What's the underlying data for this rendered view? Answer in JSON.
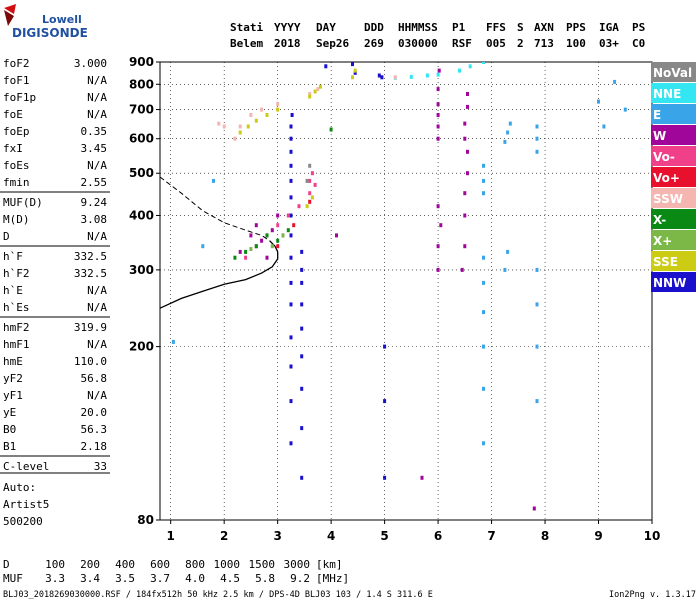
{
  "logo": {
    "line1": "Lowell",
    "line2": "DIGISONDE"
  },
  "header": {
    "labels": [
      "Stati",
      "YYYY",
      "DAY",
      "DDD",
      "HHMMSS",
      "P1",
      "FFS",
      "S",
      "AXN",
      "PPS",
      "IGA",
      "PS"
    ],
    "values": [
      "Belem",
      "2018",
      "Sep26",
      "269",
      "030000",
      "RSF",
      "005",
      "2",
      "713",
      "100",
      "03+",
      "C0"
    ]
  },
  "params": [
    {
      "name": "foF2",
      "value": "3.000"
    },
    {
      "name": "foF1",
      "value": "N/A"
    },
    {
      "name": "foF1p",
      "value": "N/A"
    },
    {
      "name": "foE",
      "value": "N/A"
    },
    {
      "name": "foEp",
      "value": "0.35"
    },
    {
      "name": "fxI",
      "value": "3.45"
    },
    {
      "name": "foEs",
      "value": "N/A"
    },
    {
      "name": "fmin",
      "value": "2.55"
    },
    {
      "name": "MUF(D)",
      "value": "9.24"
    },
    {
      "name": "M(D)",
      "value": "3.08"
    },
    {
      "name": "D",
      "value": "N/A"
    },
    {
      "name": "h`F",
      "value": "332.5"
    },
    {
      "name": "h`F2",
      "value": "332.5"
    },
    {
      "name": "h`E",
      "value": "N/A"
    },
    {
      "name": "h`Es",
      "value": "N/A"
    },
    {
      "name": "hmF2",
      "value": "319.9"
    },
    {
      "name": "hmF1",
      "value": "N/A"
    },
    {
      "name": "hmE",
      "value": "110.0"
    },
    {
      "name": "yF2",
      "value": "56.8"
    },
    {
      "name": "yF1",
      "value": "N/A"
    },
    {
      "name": "yE",
      "value": "20.0"
    },
    {
      "name": "B0",
      "value": "56.3"
    },
    {
      "name": "B1",
      "value": "2.18"
    },
    {
      "name": "C-level",
      "value": "33"
    }
  ],
  "auto": {
    "label": "Auto:",
    "name": "Artist5",
    "code": "500200"
  },
  "legend": [
    {
      "label": "NoVal",
      "color": "#888888"
    },
    {
      "label": "NNE",
      "color": "#33e6f2"
    },
    {
      "label": "E",
      "color": "#3aa4e8"
    },
    {
      "label": "W",
      "color": "#a0069a"
    },
    {
      "label": "Vo-",
      "color": "#f0408a"
    },
    {
      "label": "Vo+",
      "color": "#e8102c"
    },
    {
      "label": "SSW",
      "color": "#f5b5b0"
    },
    {
      "label": "X-",
      "color": "#0a8a14"
    },
    {
      "label": "X+",
      "color": "#7cb848"
    },
    {
      "label": "SSE",
      "color": "#cccc14"
    },
    {
      "label": "NNW",
      "color": "#1a10cc"
    }
  ],
  "mufTable": {
    "dLabel": "D",
    "dValues": [
      "100",
      "200",
      "400",
      "600",
      "800",
      "1000",
      "1500",
      "3000"
    ],
    "dUnit": "[km]",
    "mLabel": "MUF",
    "mValues": [
      "3.3",
      "3.4",
      "3.5",
      "3.7",
      "4.0",
      "4.5",
      "5.8",
      "9.2"
    ],
    "mUnit": "[MHz]"
  },
  "footer": {
    "left": "BLJ03_2018269030000.RSF / 184fx512h 50 kHz 2.5 km / DPS-4D BLJ03 103 / 1.4 S 311.6 E",
    "right": "Ion2Png v. 1.3.17"
  },
  "chart_data": {
    "type": "scatter",
    "xlim": [
      0.8,
      10
    ],
    "ylim": [
      80,
      900
    ],
    "yscale": "log",
    "xticks": [
      1,
      2,
      3,
      4,
      5,
      6,
      7,
      8,
      9,
      10
    ],
    "yticks": [
      80,
      200,
      300,
      400,
      500,
      600,
      700,
      800,
      900
    ],
    "grid": true,
    "legend_position": "right",
    "series": [
      {
        "name": "NNW",
        "color": "#1a10cc",
        "points": [
          [
            3.25,
            120
          ],
          [
            3.25,
            150
          ],
          [
            3.25,
            180
          ],
          [
            3.25,
            210
          ],
          [
            3.25,
            250
          ],
          [
            3.25,
            280
          ],
          [
            3.25,
            320
          ],
          [
            3.25,
            360
          ],
          [
            3.25,
            400
          ],
          [
            3.25,
            440
          ],
          [
            3.25,
            480
          ],
          [
            3.25,
            520
          ],
          [
            3.25,
            560
          ],
          [
            3.25,
            600
          ],
          [
            3.25,
            640
          ],
          [
            3.27,
            680
          ],
          [
            3.45,
            100
          ],
          [
            3.45,
            130
          ],
          [
            3.45,
            160
          ],
          [
            3.45,
            190
          ],
          [
            3.45,
            220
          ],
          [
            3.45,
            250
          ],
          [
            3.45,
            280
          ],
          [
            3.45,
            300
          ],
          [
            3.45,
            330
          ],
          [
            5.0,
            100
          ],
          [
            5.0,
            150
          ],
          [
            5.0,
            200
          ],
          [
            4.9,
            838
          ],
          [
            4.95,
            830
          ],
          [
            3.9,
            880
          ],
          [
            4.45,
            850
          ],
          [
            4.4,
            890
          ]
        ]
      },
      {
        "name": "W",
        "color": "#a0069a",
        "points": [
          [
            6.0,
            600
          ],
          [
            6.0,
            640
          ],
          [
            6.0,
            680
          ],
          [
            6.0,
            720
          ],
          [
            6.0,
            780
          ],
          [
            6.02,
            860
          ],
          [
            6.0,
            300
          ],
          [
            6.0,
            340
          ],
          [
            6.05,
            380
          ],
          [
            6.0,
            420
          ],
          [
            6.45,
            300
          ],
          [
            6.5,
            340
          ],
          [
            6.5,
            400
          ],
          [
            6.5,
            450
          ],
          [
            6.55,
            500
          ],
          [
            6.55,
            560
          ],
          [
            6.5,
            600
          ],
          [
            6.5,
            650
          ],
          [
            6.55,
            710
          ],
          [
            6.55,
            760
          ],
          [
            2.5,
            360
          ],
          [
            2.7,
            350
          ],
          [
            2.9,
            370
          ],
          [
            3.1,
            360
          ],
          [
            2.3,
            330
          ],
          [
            2.6,
            380
          ],
          [
            3.0,
            400
          ],
          [
            2.8,
            320
          ],
          [
            7.8,
            85
          ],
          [
            4.1,
            360
          ],
          [
            5.7,
            100
          ]
        ]
      },
      {
        "name": "E",
        "color": "#3aa4e8",
        "points": [
          [
            6.85,
            120
          ],
          [
            6.85,
            160
          ],
          [
            6.85,
            200
          ],
          [
            6.85,
            240
          ],
          [
            6.85,
            280
          ],
          [
            6.85,
            320
          ],
          [
            6.85,
            450
          ],
          [
            6.85,
            480
          ],
          [
            6.85,
            520
          ],
          [
            7.25,
            300
          ],
          [
            7.3,
            330
          ],
          [
            7.25,
            590
          ],
          [
            7.3,
            620
          ],
          [
            7.35,
            650
          ],
          [
            7.85,
            150
          ],
          [
            7.85,
            200
          ],
          [
            7.85,
            250
          ],
          [
            7.85,
            300
          ],
          [
            7.85,
            560
          ],
          [
            7.85,
            600
          ],
          [
            7.85,
            640
          ],
          [
            9.0,
            730
          ],
          [
            9.1,
            640
          ],
          [
            9.3,
            810
          ],
          [
            9.5,
            700
          ],
          [
            1.05,
            205
          ],
          [
            1.6,
            340
          ],
          [
            1.8,
            480
          ]
        ]
      },
      {
        "name": "NNE",
        "color": "#33e6f2",
        "points": [
          [
            5.2,
            828
          ],
          [
            5.5,
            832
          ],
          [
            5.8,
            838
          ],
          [
            6.0,
            842
          ],
          [
            6.4,
            860
          ],
          [
            6.6,
            880
          ],
          [
            6.85,
            900
          ]
        ]
      },
      {
        "name": "Vo-",
        "color": "#f0408a",
        "points": [
          [
            2.8,
            360
          ],
          [
            3.0,
            380
          ],
          [
            3.2,
            400
          ],
          [
            3.4,
            420
          ],
          [
            3.6,
            450
          ],
          [
            3.65,
            500
          ],
          [
            3.6,
            480
          ],
          [
            3.7,
            470
          ],
          [
            2.6,
            340
          ],
          [
            2.4,
            320
          ]
        ]
      },
      {
        "name": "Vo+",
        "color": "#e8102c",
        "points": [
          [
            3.0,
            340
          ],
          [
            3.3,
            380
          ],
          [
            3.6,
            430
          ]
        ]
      },
      {
        "name": "SSW",
        "color": "#f5b5b0",
        "points": [
          [
            1.9,
            650
          ],
          [
            2.0,
            640
          ],
          [
            2.3,
            640
          ],
          [
            2.5,
            680
          ],
          [
            2.7,
            700
          ],
          [
            3.0,
            720
          ],
          [
            2.2,
            600
          ],
          [
            3.6,
            760
          ],
          [
            3.75,
            780
          ],
          [
            5.2,
            830
          ]
        ]
      },
      {
        "name": "X-",
        "color": "#0a8a14",
        "points": [
          [
            2.2,
            320
          ],
          [
            2.4,
            330
          ],
          [
            2.6,
            340
          ],
          [
            2.8,
            360
          ],
          [
            3.0,
            350
          ],
          [
            3.2,
            370
          ],
          [
            4.0,
            630
          ]
        ]
      },
      {
        "name": "X+",
        "color": "#7cb848",
        "points": [
          [
            3.1,
            360
          ],
          [
            2.9,
            340
          ],
          [
            2.5,
            335
          ]
        ]
      },
      {
        "name": "SSE",
        "color": "#cccc14",
        "points": [
          [
            2.3,
            620
          ],
          [
            2.45,
            640
          ],
          [
            2.6,
            660
          ],
          [
            2.8,
            680
          ],
          [
            3.0,
            700
          ],
          [
            3.6,
            750
          ],
          [
            3.7,
            770
          ],
          [
            3.8,
            790
          ],
          [
            4.4,
            830
          ],
          [
            4.45,
            860
          ],
          [
            3.55,
            420
          ],
          [
            3.65,
            440
          ]
        ]
      },
      {
        "name": "NoVal",
        "color": "#888888",
        "points": [
          [
            3.55,
            480
          ],
          [
            3.6,
            520
          ]
        ]
      }
    ],
    "profile": [
      [
        0.8,
        245
      ],
      [
        1.2,
        258
      ],
      [
        1.6,
        268
      ],
      [
        2.0,
        278
      ],
      [
        2.4,
        285
      ],
      [
        2.7,
        295
      ],
      [
        2.9,
        305
      ],
      [
        3.0,
        318
      ],
      [
        3.0,
        330
      ],
      [
        2.95,
        340
      ],
      [
        2.85,
        350
      ]
    ],
    "extrapolation": [
      [
        0.8,
        490
      ],
      [
        1.2,
        450
      ],
      [
        1.6,
        410
      ],
      [
        2.0,
        385
      ],
      [
        2.4,
        370
      ],
      [
        2.7,
        360
      ],
      [
        2.85,
        350
      ]
    ]
  }
}
